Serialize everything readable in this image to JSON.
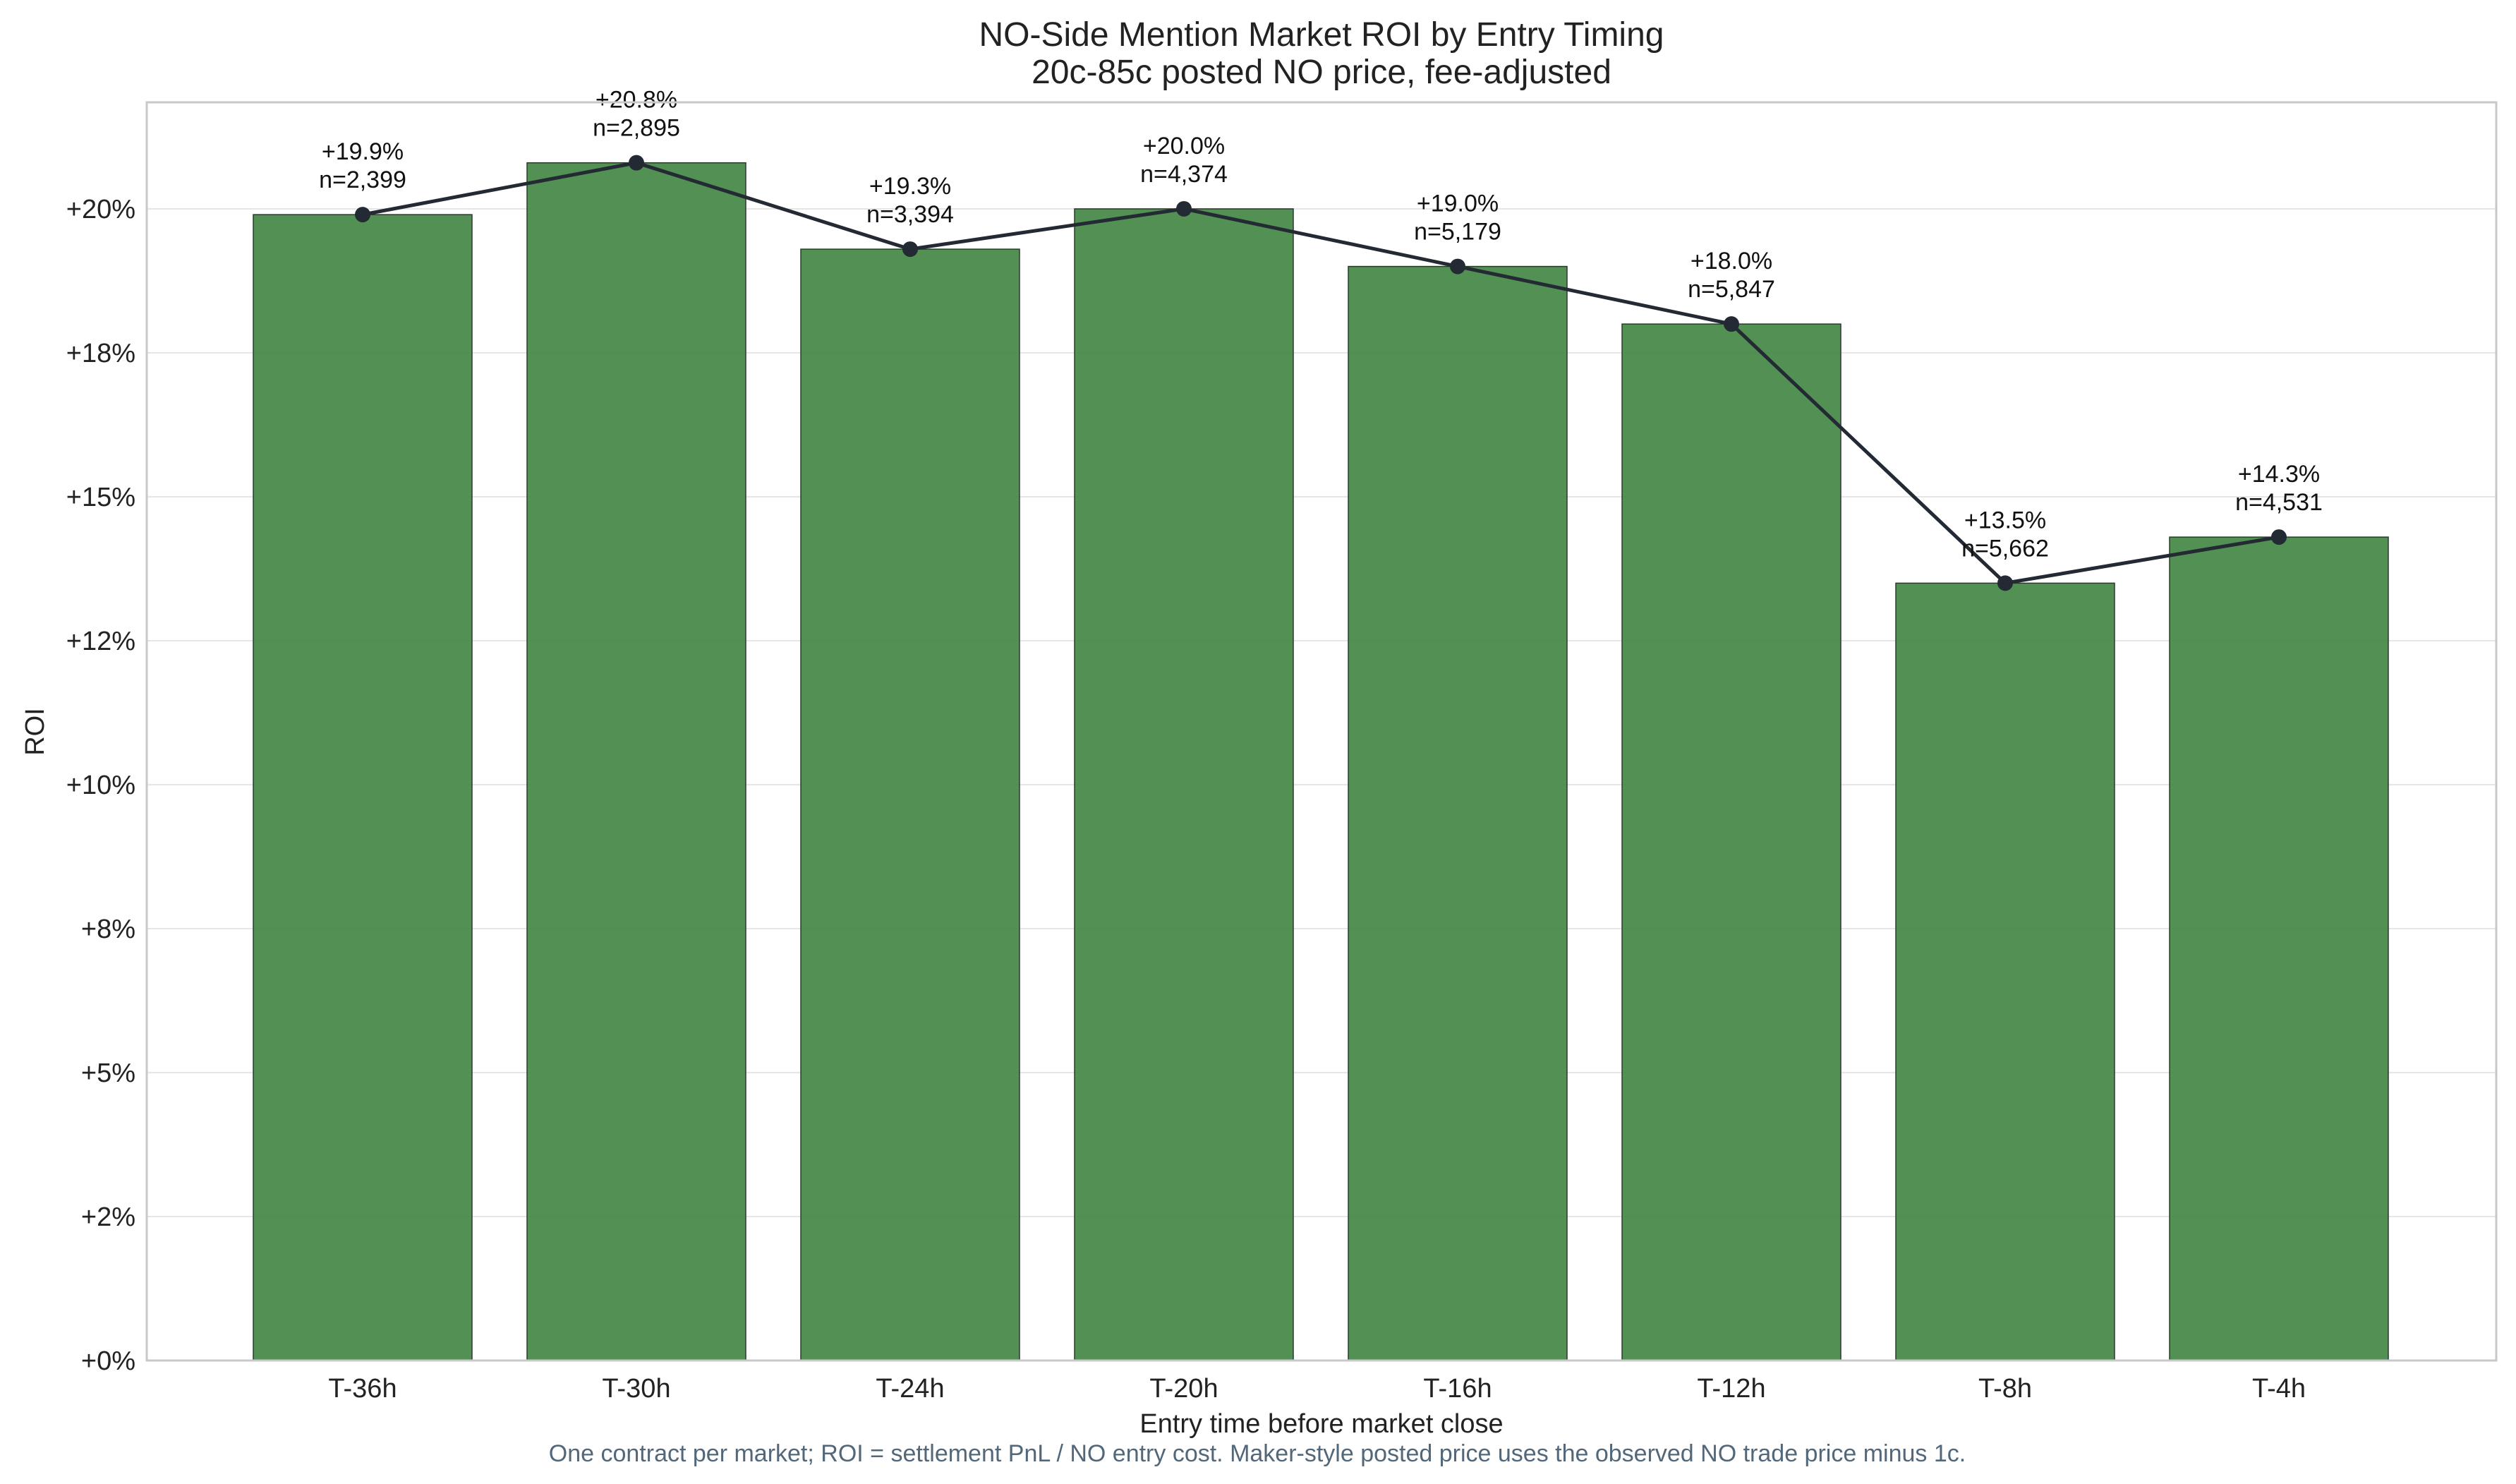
{
  "chart_data": {
    "type": "bar",
    "title": "NO-Side Mention Market ROI by Entry Timing",
    "subtitle": "20c-85c posted NO price, fee-adjusted",
    "xlabel": "Entry time before market close",
    "ylabel": "ROI",
    "footnote": "One contract per market; ROI = settlement PnL / NO entry cost. Maker-style posted price uses the observed NO trade price minus 1c.",
    "categories": [
      "T-36h",
      "T-30h",
      "T-24h",
      "T-20h",
      "T-16h",
      "T-12h",
      "T-8h",
      "T-4h"
    ],
    "series": [
      {
        "values": [
          19.9,
          20.8,
          19.3,
          20.0,
          19.0,
          18.0,
          13.5,
          14.3
        ],
        "counts": [
          "2,399",
          "2,895",
          "3,394",
          "4,374",
          "5,179",
          "5,847",
          "5,662",
          "4,531"
        ],
        "value_labels": [
          "+19.9%",
          "+20.8%",
          "+19.3%",
          "+20.0%",
          "+19.0%",
          "+18.0%",
          "+13.5%",
          "+14.3%"
        ],
        "count_labels": [
          "n=2,399",
          "n=2,895",
          "n=3,394",
          "n=4,374",
          "n=5,179",
          "n=5,847",
          "n=5,662",
          "n=4,531"
        ]
      }
    ],
    "yticks": [
      0,
      2.5,
      5,
      7.5,
      10,
      12.5,
      15,
      17.5,
      20
    ],
    "ytick_labels": [
      "+0%",
      "+2%",
      "+5%",
      "+8%",
      "+10%",
      "+12%",
      "+15%",
      "+18%",
      "+20%"
    ],
    "ylim": [
      0,
      21.85
    ],
    "grid": true,
    "overlay_line": true,
    "bar_color": "#3f8440",
    "line_color": "#232a33"
  }
}
